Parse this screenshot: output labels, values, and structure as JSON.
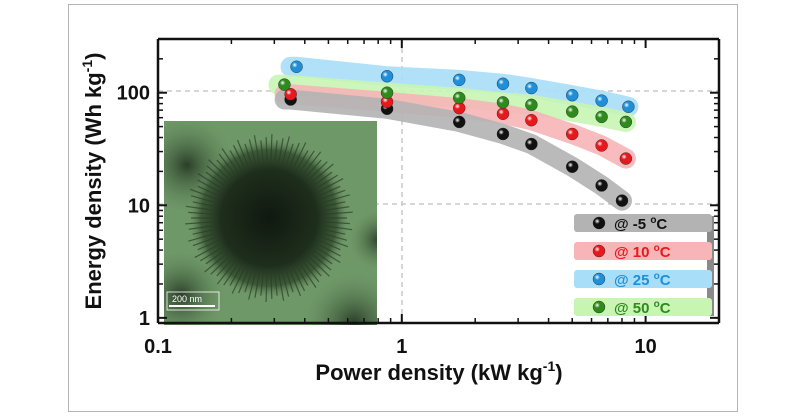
{
  "chart_data": {
    "type": "scatter",
    "title": "",
    "xlabel": "Power density (kW kg",
    "xlabel_sup": "-1",
    "xlabel_end": ")",
    "ylabel": "Energy density (Wh kg",
    "ylabel_sup": "-1",
    "ylabel_end": ")",
    "xscale": "log",
    "yscale": "log",
    "xlim": [
      0.1,
      20
    ],
    "ylim": [
      0.9,
      300
    ],
    "x_ticks": [
      0.1,
      1,
      10
    ],
    "x_tick_labels": [
      "0.1",
      "1",
      "10"
    ],
    "y_ticks": [
      1,
      10,
      100
    ],
    "y_tick_labels": [
      "1",
      "10",
      "100"
    ],
    "grid": "dashed gridlines at x = 1 and y = 10, 100",
    "legend_position": "bottom-right",
    "series": [
      {
        "name": "@ -5 °C",
        "legend_prefix": "@ -5 ",
        "legend_unit": "C",
        "color": "#111111",
        "band_color": "#b3b3b3",
        "x": [
          0.35,
          0.87,
          1.72,
          2.6,
          3.4,
          5.0,
          6.6,
          8.0
        ],
        "y": [
          87,
          72,
          55,
          43,
          35,
          22,
          15,
          11
        ]
      },
      {
        "name": "@ 10 °C",
        "legend_prefix": "@ 10 ",
        "legend_unit": "C",
        "color": "#e8191d",
        "band_color": "#f7b5b7",
        "x": [
          0.35,
          0.87,
          1.72,
          2.6,
          3.4,
          5.0,
          6.6,
          8.3
        ],
        "y": [
          97,
          83,
          73,
          65,
          57,
          43,
          34,
          26
        ]
      },
      {
        "name": "@ 25 °C",
        "legend_prefix": "@ 25 ",
        "legend_unit": "C",
        "color": "#1e8fd8",
        "band_color": "#a9def8",
        "x": [
          0.37,
          0.87,
          1.72,
          2.6,
          3.4,
          5.0,
          6.6,
          8.5
        ],
        "y": [
          170,
          140,
          130,
          120,
          110,
          95,
          85,
          75
        ]
      },
      {
        "name": "@ 50 °C",
        "legend_prefix": "@ 50 ",
        "legend_unit": "C",
        "color": "#2f8a1e",
        "band_color": "#c8f5b2",
        "x": [
          0.33,
          0.87,
          1.72,
          2.6,
          3.4,
          5.0,
          6.6,
          8.3
        ],
        "y": [
          118,
          100,
          90,
          82,
          78,
          68,
          61,
          55
        ]
      }
    ],
    "inset": {
      "description_color": "#5d8258",
      "scale_bar_label": "200 nm"
    }
  }
}
